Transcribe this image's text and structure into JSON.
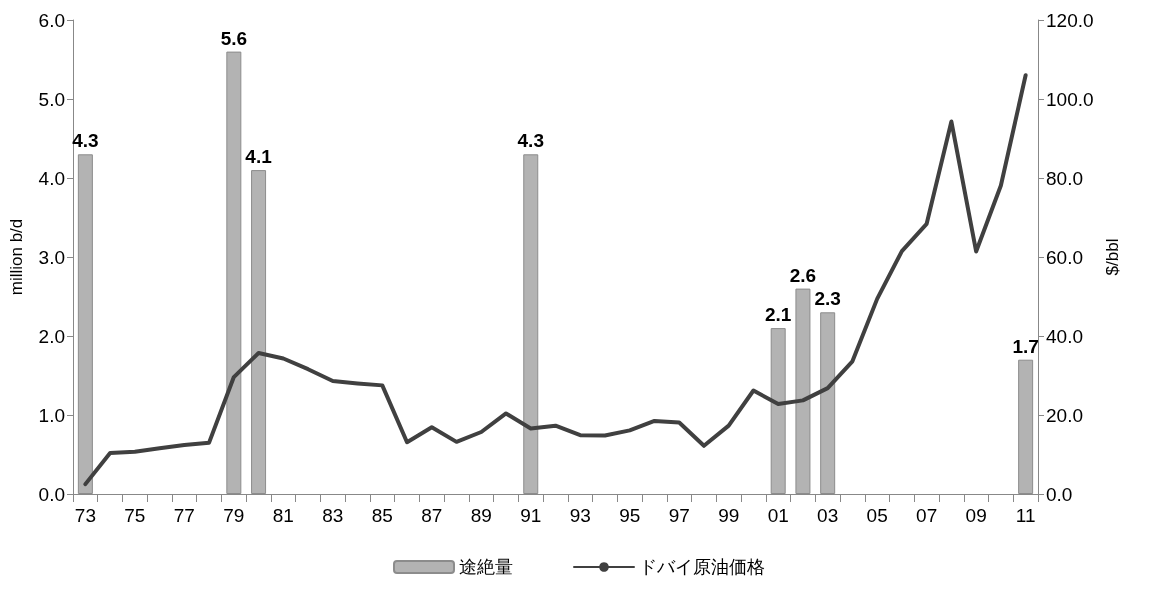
{
  "chart_data": {
    "type": "bar",
    "categories": [
      "73",
      null,
      "75",
      null,
      "77",
      null,
      "79",
      null,
      "81",
      null,
      "83",
      null,
      "85",
      null,
      "87",
      null,
      "89",
      null,
      "91",
      null,
      "93",
      null,
      "95",
      null,
      "97",
      null,
      "99",
      null,
      "01",
      null,
      "03",
      null,
      "05",
      null,
      "07",
      null,
      "09",
      null,
      "11"
    ],
    "series": [
      {
        "name": "途絶量",
        "color": "#b3b3b3",
        "values": [
          4.3,
          null,
          null,
          null,
          null,
          null,
          5.6,
          4.1,
          null,
          null,
          null,
          null,
          null,
          null,
          null,
          null,
          null,
          null,
          4.3,
          null,
          null,
          null,
          null,
          null,
          null,
          null,
          null,
          null,
          2.1,
          2.6,
          2.3,
          null,
          null,
          null,
          null,
          null,
          null,
          null,
          1.7
        ],
        "value_labels": [
          "4.3",
          null,
          null,
          null,
          null,
          null,
          "5.6",
          "4.1",
          null,
          null,
          null,
          null,
          null,
          null,
          null,
          null,
          null,
          null,
          "4.3",
          null,
          null,
          null,
          null,
          null,
          null,
          null,
          null,
          null,
          "2.1",
          "2.6",
          "2.3",
          null,
          null,
          null,
          null,
          null,
          null,
          null,
          "1.7"
        ]
      },
      {
        "name": "ドバイ原油価格",
        "type": "line",
        "axis": "y2",
        "color": "#404040",
        "values": [
          2.5,
          10.4,
          10.7,
          11.6,
          12.4,
          13.0,
          29.6,
          35.7,
          34.3,
          31.6,
          28.6,
          28.0,
          27.5,
          13.1,
          16.9,
          13.2,
          15.7,
          20.4,
          16.6,
          17.3,
          14.9,
          14.8,
          16.1,
          18.5,
          18.1,
          12.2,
          17.3,
          26.2,
          22.8,
          23.7,
          26.8,
          33.6,
          49.4,
          61.5,
          68.4,
          94.3,
          61.4,
          78.1,
          106.0
        ]
      }
    ],
    "ylabel": "million b/d",
    "y2label": "$/bbl",
    "ylim": [
      0,
      6
    ],
    "yticks": [
      {
        "value": 0,
        "label": "0.0"
      },
      {
        "value": 1,
        "label": "1.0"
      },
      {
        "value": 2,
        "label": "2.0"
      },
      {
        "value": 3,
        "label": "3.0"
      },
      {
        "value": 4,
        "label": "4.0"
      },
      {
        "value": 5,
        "label": "5.0"
      },
      {
        "value": 6,
        "label": "6.0"
      }
    ],
    "y2lim": [
      0,
      120
    ],
    "y2ticks": [
      {
        "value": 0,
        "label": "0.0"
      },
      {
        "value": 20,
        "label": "20.0"
      },
      {
        "value": 40,
        "label": "40.0"
      },
      {
        "value": 60,
        "label": "60.0"
      },
      {
        "value": 80,
        "label": "80.0"
      },
      {
        "value": 100,
        "label": "100.0"
      },
      {
        "value": 120,
        "label": "120.0"
      }
    ],
    "grid": false,
    "legend": "bottom",
    "marker": "none",
    "line_style": "solid"
  }
}
